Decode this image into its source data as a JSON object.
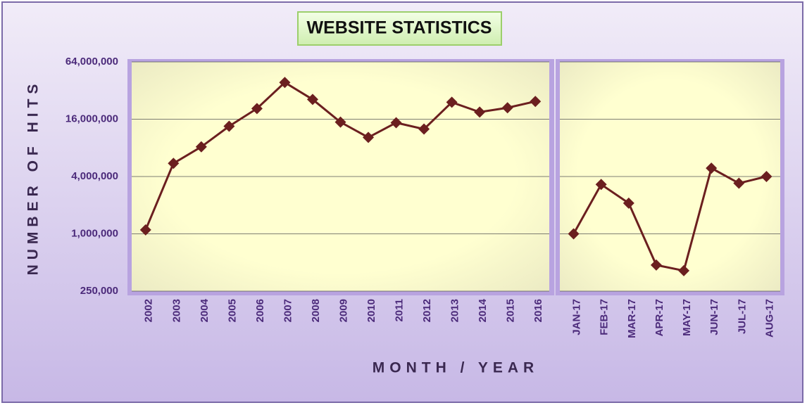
{
  "chart_data": [
    {
      "type": "line",
      "title": "WEBSITE STATISTICS",
      "y_label": "NUMBER OF HITS",
      "x_label": "MONTH / YEAR",
      "categories": [
        "2002",
        "2003",
        "2004",
        "2005",
        "2006",
        "2007",
        "2008",
        "2009",
        "2010",
        "2011",
        "2012",
        "2013",
        "2014",
        "2015",
        "2016"
      ],
      "values": [
        1100000,
        5500000,
        8200000,
        13500000,
        20700000,
        38900000,
        25800000,
        14900000,
        10300000,
        14700000,
        12600000,
        24100000,
        19000000,
        21100000,
        24600000
      ],
      "color": "#6b1f1f",
      "log_scale": true,
      "grid": true,
      "ylim": [
        250000,
        64000000
      ],
      "yticks": [
        {
          "value": 250000,
          "label": "250,000"
        },
        {
          "value": 1000000,
          "label": "1,000,000"
        },
        {
          "value": 4000000,
          "label": "4,000,000"
        },
        {
          "value": 16000000,
          "label": "16,000,000"
        },
        {
          "value": 64000000,
          "label": "64,000,000"
        }
      ]
    },
    {
      "type": "line",
      "categories": [
        "JAN-17",
        "FEB-17",
        "MAR-17",
        "APR-17",
        "MAY-17",
        "JUN-17",
        "JUL-17",
        "AUG-17"
      ],
      "values": [
        1000000,
        3300000,
        2100000,
        470000,
        410000,
        4900000,
        3400000,
        4000000
      ],
      "color": "#6b1f1f",
      "log_scale": true,
      "grid": true,
      "ylim": [
        250000,
        64000000
      ]
    }
  ]
}
